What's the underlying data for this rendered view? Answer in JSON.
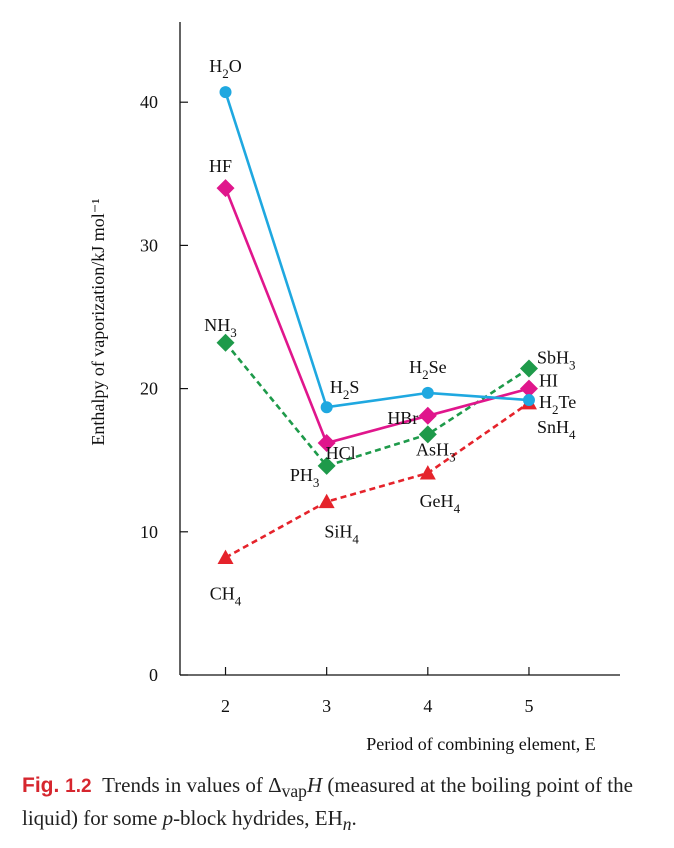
{
  "chart_data": {
    "type": "line",
    "ylabel": "Enthalpy of vaporization/kJ mol⁻¹",
    "xlabel": "Period of combining element, E",
    "x": [
      2,
      3,
      4,
      5
    ],
    "x_ticks": [
      "2",
      "3",
      "4",
      "5"
    ],
    "y_ticks": [
      "0",
      "10",
      "20",
      "30",
      "40"
    ],
    "xlim": [
      1.55,
      5.9
    ],
    "ylim": [
      0,
      46
    ],
    "grid": false,
    "series": [
      {
        "group": "group-16",
        "color": "#1fa8e0",
        "marker": "circle",
        "dash": "solid",
        "values": [
          40.7,
          18.7,
          19.7,
          19.2
        ],
        "labels": [
          {
            "base": "H",
            "sub": "2",
            "rest": "O"
          },
          {
            "base": "H",
            "sub": "2",
            "rest": "S"
          },
          {
            "base": "H",
            "sub": "2",
            "rest": "Se"
          },
          {
            "base": "H",
            "sub": "2",
            "rest": "Te"
          }
        ]
      },
      {
        "group": "group-17",
        "color": "#e0168c",
        "marker": "diamond",
        "dash": "solid",
        "values": [
          34.0,
          16.2,
          18.1,
          20.0
        ],
        "labels": [
          {
            "base": "HF",
            "sub": "",
            "rest": ""
          },
          {
            "base": "HCl",
            "sub": "",
            "rest": ""
          },
          {
            "base": "HBr",
            "sub": "",
            "rest": ""
          },
          {
            "base": "HI",
            "sub": "",
            "rest": ""
          }
        ]
      },
      {
        "group": "group-15",
        "color": "#1e9a4a",
        "marker": "diamond",
        "dash": "dashed",
        "values": [
          23.2,
          14.6,
          16.8,
          21.4
        ],
        "labels": [
          {
            "base": "NH",
            "sub": "3",
            "rest": ""
          },
          {
            "base": "PH",
            "sub": "3",
            "rest": ""
          },
          {
            "base": "AsH",
            "sub": "3",
            "rest": ""
          },
          {
            "base": "SbH",
            "sub": "3",
            "rest": ""
          }
        ]
      },
      {
        "group": "group-14",
        "color": "#e5232b",
        "marker": "triangle",
        "dash": "dashed",
        "values": [
          8.2,
          12.1,
          14.1,
          19.0
        ],
        "labels": [
          {
            "base": "CH",
            "sub": "4",
            "rest": ""
          },
          {
            "base": "SiH",
            "sub": "4",
            "rest": ""
          },
          {
            "base": "GeH",
            "sub": "4",
            "rest": ""
          },
          {
            "base": "SnH",
            "sub": "4",
            "rest": ""
          }
        ]
      }
    ]
  },
  "caption": {
    "fig_word": "Fig.",
    "fig_number": "1.2",
    "text_part1": "Trends in values of Δ",
    "text_sub": "vap",
    "text_italic": "H",
    "text_part2": " (measured at the boiling point of the liquid) for some ",
    "text_p": "p",
    "text_part3": "-block hydrides, EH",
    "text_n": "n",
    "text_end": "."
  }
}
